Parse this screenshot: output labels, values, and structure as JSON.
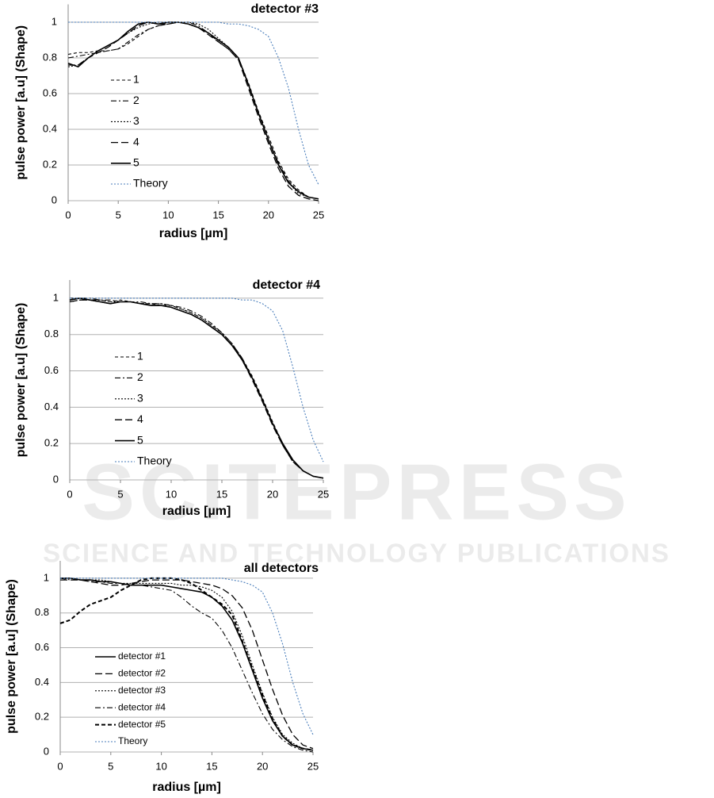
{
  "watermark": {
    "logo": "SCITEPRESS",
    "tagline": "SCIENCE AND TECHNOLOGY PUBLICATIONS"
  },
  "chart_data": [
    {
      "type": "line",
      "title": "detector #3",
      "x_label": "radius [µm]",
      "y_label": "pulse power [a.u] (Shape)",
      "x": [
        0,
        1,
        2,
        3,
        4,
        5,
        6,
        7,
        8,
        9,
        10,
        11,
        12,
        13,
        14,
        15,
        16,
        17,
        18,
        19,
        20,
        21,
        22,
        23,
        24,
        25
      ],
      "xlim": [
        0,
        25
      ],
      "ylim": [
        0,
        1.1
      ],
      "xticks": [
        0,
        5,
        10,
        15,
        20,
        25
      ],
      "yticks": [
        0,
        0.2,
        0.4,
        0.6,
        0.8,
        1
      ],
      "grid": true,
      "series": [
        {
          "name": "1",
          "color": "#000000",
          "style": "dashed",
          "values": [
            0.82,
            0.83,
            0.83,
            0.84,
            0.84,
            0.85,
            0.88,
            0.92,
            0.96,
            0.98,
            0.99,
            1.0,
            0.99,
            0.97,
            0.94,
            0.9,
            0.86,
            0.8,
            0.66,
            0.5,
            0.36,
            0.22,
            0.12,
            0.06,
            0.02,
            0.01
          ]
        },
        {
          "name": "2",
          "color": "#000000",
          "style": "dashdot",
          "values": [
            0.8,
            0.81,
            0.82,
            0.83,
            0.84,
            0.85,
            0.89,
            0.93,
            0.96,
            0.98,
            0.99,
            1.0,
            1.0,
            0.98,
            0.94,
            0.89,
            0.85,
            0.79,
            0.65,
            0.49,
            0.34,
            0.21,
            0.11,
            0.05,
            0.02,
            0.01
          ]
        },
        {
          "name": "3",
          "color": "#000000",
          "style": "dotted",
          "values": [
            0.75,
            0.76,
            0.8,
            0.84,
            0.87,
            0.9,
            0.94,
            0.97,
            0.99,
            1.0,
            1.0,
            1.0,
            1.0,
            0.99,
            0.96,
            0.91,
            0.86,
            0.8,
            0.65,
            0.49,
            0.34,
            0.2,
            0.1,
            0.04,
            0.02,
            0.01
          ]
        },
        {
          "name": "4",
          "color": "#000000",
          "style": "longdash",
          "values": [
            0.76,
            0.76,
            0.8,
            0.83,
            0.86,
            0.9,
            0.94,
            0.98,
            1.0,
            0.99,
            0.99,
            1.0,
            0.99,
            0.97,
            0.93,
            0.89,
            0.85,
            0.79,
            0.63,
            0.47,
            0.32,
            0.18,
            0.08,
            0.03,
            0.01,
            0
          ]
        },
        {
          "name": "5",
          "color": "#000000",
          "style": "solid",
          "values": [
            0.77,
            0.75,
            0.8,
            0.84,
            0.87,
            0.9,
            0.95,
            0.99,
            1.0,
            0.99,
            1.0,
            1.0,
            0.99,
            0.97,
            0.94,
            0.9,
            0.86,
            0.8,
            0.65,
            0.49,
            0.34,
            0.2,
            0.1,
            0.05,
            0.02,
            0.01
          ]
        },
        {
          "name": "Theory",
          "color": "#4a7ebb",
          "style": "dotted",
          "values": [
            1,
            1,
            1,
            1,
            1,
            1,
            1,
            1,
            1,
            1,
            1,
            1,
            1,
            1,
            1,
            1,
            0.99,
            0.99,
            0.98,
            0.96,
            0.92,
            0.8,
            0.63,
            0.4,
            0.2,
            0.09
          ]
        }
      ]
    },
    {
      "type": "line",
      "title": "detector #4",
      "x_label": "radius [µm]",
      "y_label": "pulse power [a.u] (Shape)",
      "x": [
        0,
        1,
        2,
        3,
        4,
        5,
        6,
        7,
        8,
        9,
        10,
        11,
        12,
        13,
        14,
        15,
        16,
        17,
        18,
        19,
        20,
        21,
        22,
        23,
        24,
        25
      ],
      "xlim": [
        0,
        25
      ],
      "ylim": [
        0,
        1.1
      ],
      "xticks": [
        0,
        5,
        10,
        15,
        20,
        25
      ],
      "yticks": [
        0,
        0.2,
        0.4,
        0.6,
        0.8,
        1
      ],
      "grid": true,
      "series": [
        {
          "name": "1",
          "color": "#000000",
          "style": "dashed",
          "values": [
            1.0,
            1.0,
            0.99,
            0.99,
            0.98,
            0.99,
            0.98,
            0.97,
            0.97,
            0.96,
            0.96,
            0.94,
            0.92,
            0.89,
            0.85,
            0.81,
            0.75,
            0.67,
            0.57,
            0.45,
            0.32,
            0.2,
            0.11,
            0.05,
            0.02,
            0.01
          ]
        },
        {
          "name": "2",
          "color": "#000000",
          "style": "dashdot",
          "values": [
            0.99,
            1.0,
            1.0,
            0.99,
            0.99,
            0.98,
            0.98,
            0.98,
            0.97,
            0.97,
            0.96,
            0.95,
            0.93,
            0.9,
            0.86,
            0.81,
            0.75,
            0.67,
            0.56,
            0.44,
            0.31,
            0.19,
            0.1,
            0.05,
            0.02,
            0.01
          ]
        },
        {
          "name": "3",
          "color": "#000000",
          "style": "dotted",
          "values": [
            0.98,
            0.99,
            0.99,
            0.99,
            0.98,
            0.98,
            0.98,
            0.97,
            0.97,
            0.97,
            0.96,
            0.94,
            0.92,
            0.89,
            0.85,
            0.81,
            0.75,
            0.66,
            0.56,
            0.44,
            0.31,
            0.2,
            0.11,
            0.05,
            0.02,
            0.01
          ]
        },
        {
          "name": "4",
          "color": "#000000",
          "style": "longdash",
          "values": [
            0.98,
            0.99,
            0.99,
            0.98,
            0.97,
            0.98,
            0.98,
            0.97,
            0.96,
            0.96,
            0.95,
            0.93,
            0.91,
            0.88,
            0.84,
            0.8,
            0.74,
            0.66,
            0.55,
            0.43,
            0.3,
            0.19,
            0.1,
            0.05,
            0.02,
            0.01
          ]
        },
        {
          "name": "5",
          "color": "#000000",
          "style": "solid",
          "values": [
            0.99,
            1.0,
            0.99,
            0.98,
            0.97,
            0.98,
            0.98,
            0.97,
            0.96,
            0.96,
            0.95,
            0.93,
            0.91,
            0.88,
            0.84,
            0.8,
            0.74,
            0.66,
            0.56,
            0.44,
            0.31,
            0.2,
            0.11,
            0.05,
            0.02,
            0.01
          ]
        },
        {
          "name": "Theory",
          "color": "#4a7ebb",
          "style": "dotted",
          "values": [
            1,
            1,
            1,
            1,
            1,
            1,
            1,
            1,
            1,
            1,
            1,
            1,
            1,
            1,
            1,
            1,
            1,
            0.99,
            0.99,
            0.97,
            0.93,
            0.82,
            0.62,
            0.4,
            0.22,
            0.1
          ]
        }
      ]
    },
    {
      "type": "line",
      "title": "all detectors",
      "x_label": "radius [µm]",
      "y_label": "pulse power [a.u] (Shape)",
      "x": [
        0,
        1,
        2,
        3,
        4,
        5,
        6,
        7,
        8,
        9,
        10,
        11,
        12,
        13,
        14,
        15,
        16,
        17,
        18,
        19,
        20,
        21,
        22,
        23,
        24,
        25
      ],
      "xlim": [
        0,
        25
      ],
      "ylim": [
        0,
        1.1
      ],
      "xticks": [
        0,
        5,
        10,
        15,
        20,
        25
      ],
      "yticks": [
        0,
        0.2,
        0.4,
        0.6,
        0.8,
        1
      ],
      "grid": true,
      "series": [
        {
          "name": "detector #1",
          "color": "#000000",
          "style": "solid",
          "values": [
            1,
            1,
            0.99,
            0.99,
            0.98,
            0.98,
            0.97,
            0.96,
            0.96,
            0.96,
            0.96,
            0.95,
            0.94,
            0.93,
            0.92,
            0.89,
            0.84,
            0.76,
            0.63,
            0.47,
            0.31,
            0.18,
            0.09,
            0.04,
            0.02,
            0.01
          ]
        },
        {
          "name": "detector #2",
          "color": "#000000",
          "style": "longdash",
          "values": [
            0.99,
            0.99,
            0.99,
            0.98,
            0.97,
            0.96,
            0.96,
            0.97,
            0.98,
            0.99,
            0.99,
            0.99,
            0.99,
            0.98,
            0.97,
            0.96,
            0.94,
            0.9,
            0.83,
            0.7,
            0.53,
            0.36,
            0.21,
            0.1,
            0.04,
            0.02
          ]
        },
        {
          "name": "detector #3",
          "color": "#000000",
          "style": "dotted",
          "values": [
            1,
            1,
            0.99,
            0.99,
            0.99,
            0.98,
            0.97,
            0.97,
            0.97,
            0.97,
            0.97,
            0.97,
            0.96,
            0.96,
            0.95,
            0.93,
            0.89,
            0.81,
            0.67,
            0.5,
            0.34,
            0.2,
            0.1,
            0.05,
            0.02,
            0.01
          ]
        },
        {
          "name": "detector #4",
          "color": "#000000",
          "style": "dashdot",
          "values": [
            1,
            0.99,
            0.99,
            0.98,
            0.98,
            0.97,
            0.97,
            0.96,
            0.96,
            0.95,
            0.94,
            0.93,
            0.89,
            0.84,
            0.8,
            0.77,
            0.7,
            0.6,
            0.47,
            0.34,
            0.22,
            0.13,
            0.07,
            0.03,
            0.01,
            0
          ]
        },
        {
          "name": "detector #5",
          "color": "#000000",
          "style": "heavydash",
          "values": [
            0.74,
            0.76,
            0.81,
            0.85,
            0.87,
            0.89,
            0.93,
            0.96,
            0.99,
            1.0,
            1.0,
            1.0,
            0.99,
            0.97,
            0.93,
            0.89,
            0.85,
            0.79,
            0.64,
            0.48,
            0.33,
            0.19,
            0.09,
            0.04,
            0.02,
            0.01
          ]
        },
        {
          "name": "Theory",
          "color": "#4a7ebb",
          "style": "dotted",
          "values": [
            1,
            1,
            1,
            1,
            1,
            1,
            1,
            1,
            1,
            1,
            1,
            1,
            1,
            1,
            1,
            1,
            1,
            0.99,
            0.98,
            0.96,
            0.92,
            0.8,
            0.62,
            0.4,
            0.22,
            0.1
          ]
        }
      ]
    }
  ]
}
